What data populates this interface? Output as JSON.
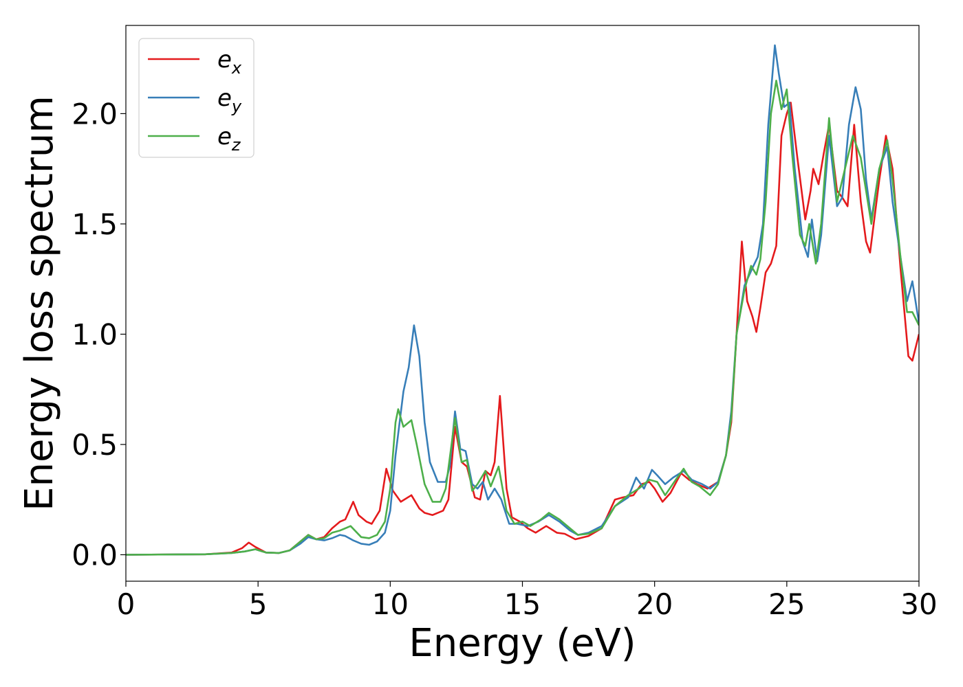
{
  "chart_data": {
    "type": "line",
    "title": "",
    "xlabel": "Energy (eV)",
    "ylabel": "Energy loss spectrum",
    "xlim": [
      0,
      30
    ],
    "ylim": [
      -0.12,
      2.4
    ],
    "xticks": [
      0,
      5,
      10,
      15,
      20,
      25,
      30
    ],
    "xtick_labels": [
      "0",
      "5",
      "10",
      "15",
      "20",
      "25",
      "30"
    ],
    "yticks": [
      0.0,
      0.5,
      1.0,
      1.5,
      2.0
    ],
    "ytick_labels": [
      "0.0",
      "0.5",
      "1.0",
      "1.5",
      "2.0"
    ],
    "grid": false,
    "legend_position": "top-left",
    "series": [
      {
        "name": "e",
        "subscript": "x",
        "color": "#e41a1c",
        "points": [
          [
            0,
            0
          ],
          [
            3,
            0.002
          ],
          [
            4.0,
            0.01
          ],
          [
            4.4,
            0.03
          ],
          [
            4.65,
            0.055
          ],
          [
            4.9,
            0.035
          ],
          [
            5.3,
            0.01
          ],
          [
            5.8,
            0.008
          ],
          [
            6.2,
            0.02
          ],
          [
            6.6,
            0.06
          ],
          [
            6.9,
            0.09
          ],
          [
            7.2,
            0.07
          ],
          [
            7.5,
            0.08
          ],
          [
            7.8,
            0.12
          ],
          [
            8.1,
            0.15
          ],
          [
            8.3,
            0.16
          ],
          [
            8.6,
            0.24
          ],
          [
            8.8,
            0.18
          ],
          [
            9.1,
            0.15
          ],
          [
            9.3,
            0.14
          ],
          [
            9.6,
            0.2
          ],
          [
            9.85,
            0.39
          ],
          [
            10.1,
            0.29
          ],
          [
            10.4,
            0.24
          ],
          [
            10.8,
            0.27
          ],
          [
            11.1,
            0.21
          ],
          [
            11.3,
            0.19
          ],
          [
            11.6,
            0.18
          ],
          [
            12.0,
            0.2
          ],
          [
            12.2,
            0.25
          ],
          [
            12.45,
            0.58
          ],
          [
            12.7,
            0.42
          ],
          [
            12.9,
            0.4
          ],
          [
            13.2,
            0.26
          ],
          [
            13.4,
            0.25
          ],
          [
            13.6,
            0.38
          ],
          [
            13.8,
            0.36
          ],
          [
            13.95,
            0.42
          ],
          [
            14.15,
            0.72
          ],
          [
            14.4,
            0.3
          ],
          [
            14.6,
            0.17
          ],
          [
            14.9,
            0.15
          ],
          [
            15.2,
            0.12
          ],
          [
            15.5,
            0.1
          ],
          [
            15.9,
            0.13
          ],
          [
            16.3,
            0.1
          ],
          [
            16.6,
            0.095
          ],
          [
            17.0,
            0.07
          ],
          [
            17.5,
            0.085
          ],
          [
            18.0,
            0.12
          ],
          [
            18.5,
            0.25
          ],
          [
            18.8,
            0.26
          ],
          [
            19.2,
            0.27
          ],
          [
            19.5,
            0.32
          ],
          [
            19.8,
            0.33
          ],
          [
            20.0,
            0.3
          ],
          [
            20.3,
            0.24
          ],
          [
            20.6,
            0.28
          ],
          [
            21.0,
            0.37
          ],
          [
            21.3,
            0.34
          ],
          [
            21.6,
            0.32
          ],
          [
            22.0,
            0.3
          ],
          [
            22.4,
            0.33
          ],
          [
            22.7,
            0.45
          ],
          [
            22.9,
            0.6
          ],
          [
            23.1,
            1.0
          ],
          [
            23.3,
            1.42
          ],
          [
            23.5,
            1.15
          ],
          [
            23.7,
            1.08
          ],
          [
            23.85,
            1.01
          ],
          [
            24.0,
            1.12
          ],
          [
            24.2,
            1.28
          ],
          [
            24.4,
            1.32
          ],
          [
            24.6,
            1.4
          ],
          [
            24.8,
            1.9
          ],
          [
            25.0,
            2.0
          ],
          [
            25.15,
            2.05
          ],
          [
            25.4,
            1.8
          ],
          [
            25.7,
            1.52
          ],
          [
            25.9,
            1.65
          ],
          [
            26.0,
            1.75
          ],
          [
            26.2,
            1.68
          ],
          [
            26.4,
            1.82
          ],
          [
            26.6,
            1.95
          ],
          [
            26.9,
            1.65
          ],
          [
            27.1,
            1.62
          ],
          [
            27.3,
            1.58
          ],
          [
            27.55,
            1.95
          ],
          [
            27.8,
            1.6
          ],
          [
            28.0,
            1.42
          ],
          [
            28.15,
            1.37
          ],
          [
            28.5,
            1.7
          ],
          [
            28.75,
            1.9
          ],
          [
            29.0,
            1.75
          ],
          [
            29.3,
            1.3
          ],
          [
            29.6,
            0.9
          ],
          [
            29.75,
            0.88
          ],
          [
            30.0,
            1.0
          ]
        ]
      },
      {
        "name": "e",
        "subscript": "y",
        "color": "#377eb8",
        "points": [
          [
            0,
            0
          ],
          [
            3,
            0.002
          ],
          [
            4.0,
            0.008
          ],
          [
            4.5,
            0.015
          ],
          [
            4.9,
            0.025
          ],
          [
            5.3,
            0.01
          ],
          [
            5.8,
            0.008
          ],
          [
            6.2,
            0.02
          ],
          [
            6.6,
            0.05
          ],
          [
            6.9,
            0.08
          ],
          [
            7.2,
            0.07
          ],
          [
            7.5,
            0.065
          ],
          [
            7.8,
            0.075
          ],
          [
            8.1,
            0.09
          ],
          [
            8.3,
            0.085
          ],
          [
            8.6,
            0.065
          ],
          [
            8.9,
            0.05
          ],
          [
            9.2,
            0.045
          ],
          [
            9.5,
            0.06
          ],
          [
            9.8,
            0.1
          ],
          [
            10.0,
            0.2
          ],
          [
            10.2,
            0.45
          ],
          [
            10.5,
            0.74
          ],
          [
            10.7,
            0.85
          ],
          [
            10.9,
            1.04
          ],
          [
            11.1,
            0.9
          ],
          [
            11.3,
            0.6
          ],
          [
            11.5,
            0.42
          ],
          [
            11.8,
            0.33
          ],
          [
            12.1,
            0.33
          ],
          [
            12.25,
            0.4
          ],
          [
            12.45,
            0.65
          ],
          [
            12.65,
            0.48
          ],
          [
            12.85,
            0.47
          ],
          [
            13.1,
            0.32
          ],
          [
            13.3,
            0.3
          ],
          [
            13.5,
            0.33
          ],
          [
            13.7,
            0.25
          ],
          [
            13.95,
            0.3
          ],
          [
            14.2,
            0.25
          ],
          [
            14.5,
            0.14
          ],
          [
            14.8,
            0.14
          ],
          [
            15.2,
            0.13
          ],
          [
            15.6,
            0.15
          ],
          [
            16.0,
            0.18
          ],
          [
            16.4,
            0.15
          ],
          [
            16.8,
            0.11
          ],
          [
            17.1,
            0.09
          ],
          [
            17.5,
            0.1
          ],
          [
            18.0,
            0.13
          ],
          [
            18.5,
            0.22
          ],
          [
            19.0,
            0.26
          ],
          [
            19.3,
            0.35
          ],
          [
            19.6,
            0.3
          ],
          [
            19.9,
            0.385
          ],
          [
            20.1,
            0.36
          ],
          [
            20.4,
            0.32
          ],
          [
            20.7,
            0.35
          ],
          [
            21.1,
            0.38
          ],
          [
            21.4,
            0.34
          ],
          [
            21.8,
            0.32
          ],
          [
            22.1,
            0.3
          ],
          [
            22.4,
            0.33
          ],
          [
            22.7,
            0.45
          ],
          [
            22.9,
            0.65
          ],
          [
            23.1,
            1.0
          ],
          [
            23.4,
            1.22
          ],
          [
            23.7,
            1.3
          ],
          [
            23.9,
            1.35
          ],
          [
            24.1,
            1.5
          ],
          [
            24.3,
            1.95
          ],
          [
            24.55,
            2.31
          ],
          [
            24.7,
            2.18
          ],
          [
            24.9,
            2.03
          ],
          [
            25.1,
            2.05
          ],
          [
            25.3,
            1.75
          ],
          [
            25.6,
            1.42
          ],
          [
            25.8,
            1.35
          ],
          [
            25.95,
            1.52
          ],
          [
            26.15,
            1.33
          ],
          [
            26.3,
            1.45
          ],
          [
            26.6,
            1.9
          ],
          [
            26.9,
            1.58
          ],
          [
            27.1,
            1.62
          ],
          [
            27.35,
            1.95
          ],
          [
            27.6,
            2.12
          ],
          [
            27.8,
            2.02
          ],
          [
            28.0,
            1.7
          ],
          [
            28.2,
            1.52
          ],
          [
            28.5,
            1.75
          ],
          [
            28.8,
            1.85
          ],
          [
            29.0,
            1.6
          ],
          [
            29.3,
            1.35
          ],
          [
            29.55,
            1.15
          ],
          [
            29.75,
            1.24
          ],
          [
            30.0,
            1.05
          ]
        ]
      },
      {
        "name": "e",
        "subscript": "z",
        "color": "#4daf4a",
        "points": [
          [
            0,
            0
          ],
          [
            3,
            0.002
          ],
          [
            4.0,
            0.008
          ],
          [
            4.5,
            0.015
          ],
          [
            4.9,
            0.025
          ],
          [
            5.3,
            0.01
          ],
          [
            5.8,
            0.008
          ],
          [
            6.2,
            0.02
          ],
          [
            6.6,
            0.06
          ],
          [
            6.9,
            0.09
          ],
          [
            7.2,
            0.07
          ],
          [
            7.5,
            0.075
          ],
          [
            7.8,
            0.1
          ],
          [
            8.1,
            0.11
          ],
          [
            8.3,
            0.12
          ],
          [
            8.5,
            0.13
          ],
          [
            8.9,
            0.08
          ],
          [
            9.2,
            0.075
          ],
          [
            9.5,
            0.09
          ],
          [
            9.8,
            0.15
          ],
          [
            10.0,
            0.3
          ],
          [
            10.2,
            0.6
          ],
          [
            10.3,
            0.66
          ],
          [
            10.5,
            0.58
          ],
          [
            10.8,
            0.61
          ],
          [
            11.0,
            0.5
          ],
          [
            11.3,
            0.32
          ],
          [
            11.6,
            0.24
          ],
          [
            11.9,
            0.24
          ],
          [
            12.1,
            0.3
          ],
          [
            12.45,
            0.62
          ],
          [
            12.7,
            0.42
          ],
          [
            12.9,
            0.43
          ],
          [
            13.1,
            0.29
          ],
          [
            13.3,
            0.32
          ],
          [
            13.6,
            0.38
          ],
          [
            13.8,
            0.31
          ],
          [
            14.1,
            0.4
          ],
          [
            14.4,
            0.2
          ],
          [
            14.7,
            0.14
          ],
          [
            15.0,
            0.15
          ],
          [
            15.3,
            0.13
          ],
          [
            15.7,
            0.16
          ],
          [
            16.0,
            0.19
          ],
          [
            16.4,
            0.16
          ],
          [
            16.8,
            0.12
          ],
          [
            17.1,
            0.09
          ],
          [
            17.5,
            0.095
          ],
          [
            18.0,
            0.12
          ],
          [
            18.5,
            0.22
          ],
          [
            19.0,
            0.27
          ],
          [
            19.4,
            0.3
          ],
          [
            19.8,
            0.34
          ],
          [
            20.1,
            0.33
          ],
          [
            20.4,
            0.27
          ],
          [
            20.8,
            0.34
          ],
          [
            21.1,
            0.39
          ],
          [
            21.4,
            0.33
          ],
          [
            21.7,
            0.31
          ],
          [
            22.1,
            0.27
          ],
          [
            22.4,
            0.32
          ],
          [
            22.7,
            0.45
          ],
          [
            22.9,
            0.62
          ],
          [
            23.1,
            1.0
          ],
          [
            23.4,
            1.2
          ],
          [
            23.65,
            1.31
          ],
          [
            23.85,
            1.27
          ],
          [
            24.0,
            1.34
          ],
          [
            24.2,
            1.6
          ],
          [
            24.4,
            2.0
          ],
          [
            24.6,
            2.15
          ],
          [
            24.8,
            2.02
          ],
          [
            25.0,
            2.11
          ],
          [
            25.2,
            1.82
          ],
          [
            25.5,
            1.45
          ],
          [
            25.7,
            1.4
          ],
          [
            25.85,
            1.5
          ],
          [
            26.1,
            1.32
          ],
          [
            26.3,
            1.5
          ],
          [
            26.6,
            1.98
          ],
          [
            26.9,
            1.6
          ],
          [
            27.2,
            1.75
          ],
          [
            27.5,
            1.9
          ],
          [
            27.8,
            1.8
          ],
          [
            28.0,
            1.65
          ],
          [
            28.2,
            1.5
          ],
          [
            28.5,
            1.75
          ],
          [
            28.8,
            1.88
          ],
          [
            29.0,
            1.7
          ],
          [
            29.3,
            1.35
          ],
          [
            29.55,
            1.1
          ],
          [
            29.75,
            1.1
          ],
          [
            30.0,
            1.04
          ]
        ]
      }
    ]
  }
}
